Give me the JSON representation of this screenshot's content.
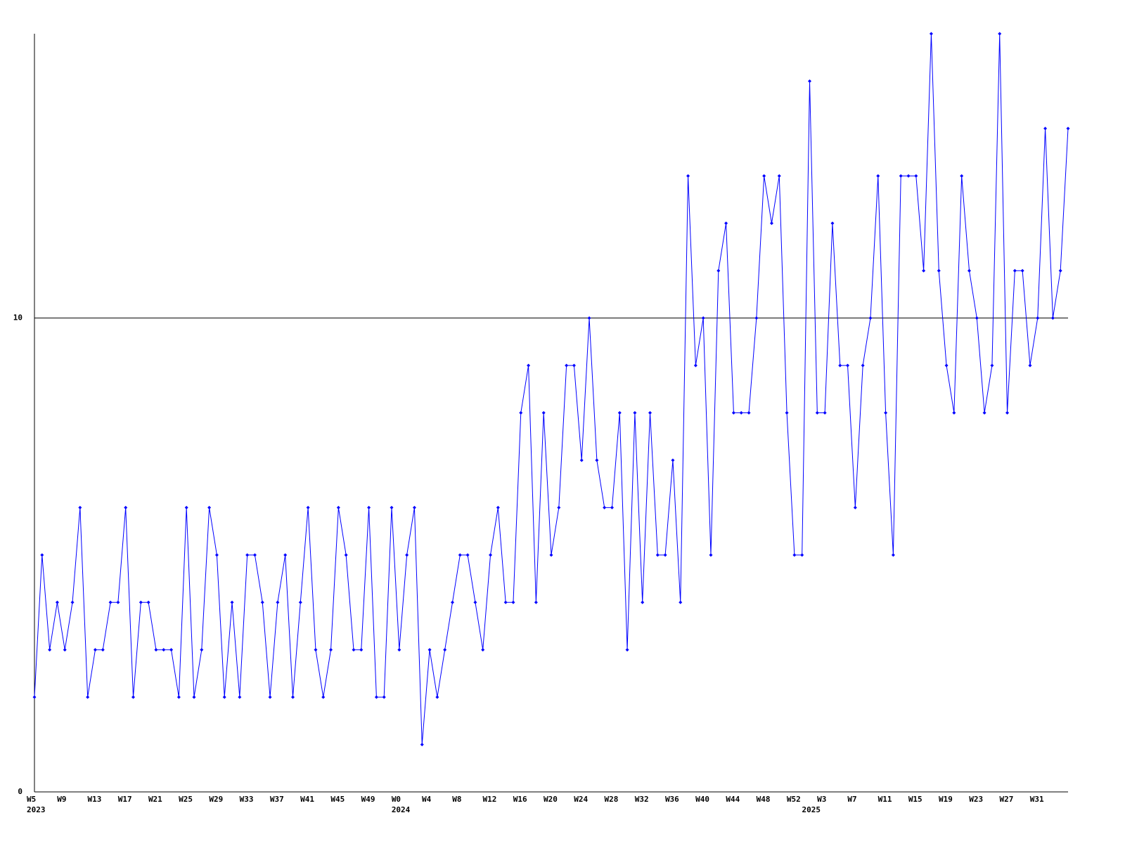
{
  "chart_data": {
    "type": "line",
    "color": "#0000ff",
    "ylim": [
      0,
      16
    ],
    "yticks": [
      0,
      10
    ],
    "grid": true,
    "categories": [
      "W5",
      null,
      null,
      null,
      "W9",
      null,
      null,
      null,
      "W13",
      null,
      null,
      null,
      "W17",
      null,
      null,
      null,
      "W21",
      null,
      null,
      null,
      "W25",
      null,
      null,
      null,
      "W29",
      null,
      null,
      null,
      "W33",
      null,
      null,
      null,
      "W37",
      null,
      null,
      null,
      "W41",
      null,
      null,
      null,
      "W45",
      null,
      null,
      null,
      "W49",
      null,
      null,
      null,
      "W0",
      null,
      null,
      null,
      "W4",
      null,
      null,
      null,
      "W8",
      null,
      null,
      null,
      "W12",
      null,
      null,
      null,
      "W16",
      null,
      null,
      null,
      "W20",
      null,
      null,
      null,
      "W24",
      null,
      null,
      null,
      "W28",
      null,
      null,
      null,
      "W32",
      null,
      null,
      null,
      "W36",
      null,
      null,
      null,
      "W40",
      null,
      null,
      null,
      "W44",
      null,
      null,
      null,
      "W48",
      null,
      null,
      null,
      "W52",
      null,
      null,
      null,
      "W3",
      null,
      null,
      null,
      "W7",
      null,
      null,
      null,
      "W11",
      null,
      null,
      null,
      "W15",
      null,
      null,
      null,
      "W19",
      null,
      null,
      null,
      "W23",
      null,
      null,
      null,
      "W27",
      null,
      null,
      null,
      "W31",
      null,
      null,
      null,
      null
    ],
    "year_labels": [
      "2023",
      null,
      null,
      null,
      null,
      null,
      null,
      null,
      null,
      null,
      null,
      null,
      null,
      null,
      null,
      null,
      null,
      null,
      null,
      null,
      null,
      null,
      null,
      null,
      null,
      null,
      null,
      null,
      null,
      null,
      null,
      null,
      null,
      null,
      null,
      null,
      null,
      null,
      null,
      null,
      null,
      null,
      null,
      null,
      null,
      null,
      null,
      null,
      "2024",
      null,
      null,
      null,
      null,
      null,
      null,
      null,
      null,
      null,
      null,
      null,
      null,
      null,
      null,
      null,
      null,
      null,
      null,
      null,
      null,
      null,
      null,
      null,
      null,
      null,
      null,
      null,
      null,
      null,
      null,
      null,
      null,
      null,
      null,
      null,
      null,
      null,
      null,
      null,
      null,
      null,
      null,
      null,
      null,
      null,
      null,
      null,
      null,
      null,
      null,
      null,
      null,
      null,
      "2025",
      null,
      null,
      null,
      null,
      null,
      null,
      null,
      null,
      null,
      null,
      null,
      null,
      null,
      null,
      null,
      null,
      null,
      null,
      null,
      null,
      null,
      null,
      null,
      null,
      null,
      null,
      null,
      null,
      null,
      null,
      null,
      null,
      null,
      null,
      null
    ],
    "values": [
      2,
      5,
      3,
      4,
      3,
      4,
      6,
      2,
      3,
      3,
      4,
      4,
      6,
      2,
      4,
      4,
      3,
      3,
      3,
      2,
      6,
      2,
      3,
      6,
      5,
      2,
      4,
      2,
      5,
      5,
      4,
      2,
      4,
      5,
      2,
      4,
      6,
      3,
      2,
      3,
      6,
      5,
      3,
      3,
      6,
      2,
      2,
      6,
      3,
      5,
      6,
      1,
      3,
      2,
      3,
      4,
      5,
      5,
      4,
      3,
      5,
      6,
      4,
      4,
      8,
      9,
      4,
      8,
      5,
      6,
      9,
      9,
      7,
      10,
      7,
      6,
      6,
      8,
      3,
      8,
      4,
      8,
      5,
      5,
      7,
      4,
      13,
      9,
      10,
      5,
      11,
      12,
      8,
      8,
      8,
      10,
      13,
      12,
      13,
      8,
      5,
      5,
      15,
      8,
      8,
      12,
      9,
      9,
      6,
      9,
      10,
      13,
      8,
      5,
      13,
      13,
      13,
      11,
      16,
      11,
      9,
      8,
      13,
      11,
      10,
      8,
      9,
      16,
      8,
      11,
      11,
      9,
      10,
      14,
      10,
      11,
      14
    ]
  }
}
